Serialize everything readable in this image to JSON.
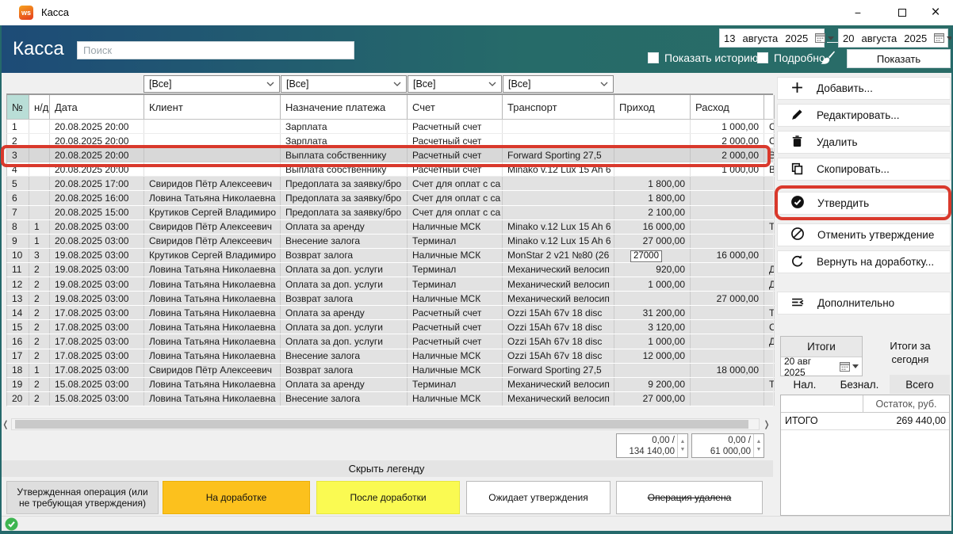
{
  "window": {
    "title": "Касса",
    "icon_text": "ws"
  },
  "header": {
    "title": "Касса",
    "search_placeholder": "Поиск",
    "date_from": {
      "day": "13",
      "month": "августа",
      "year": "2025"
    },
    "date_to": {
      "day": "20",
      "month": "августа",
      "year": "2025"
    },
    "range_dash": "—",
    "show_history_label": "Показать историю",
    "detail_label": "Подробно",
    "show_button": "Показать"
  },
  "filters": {
    "items": [
      "[Все]",
      "[Все]",
      "[Все]",
      "[Все]"
    ]
  },
  "table": {
    "columns": [
      "№",
      "н/д",
      "Дата",
      "Клиент",
      "Назначение платежа",
      "Счет",
      "Транспорт",
      "Приход",
      "Расход"
    ],
    "rows": [
      {
        "n": "1",
        "nd": "",
        "date": "20.08.2025 20:00",
        "client": "",
        "purpose": "Зарплата",
        "account": "Расчетный счет",
        "transport": "",
        "income": "",
        "expense": "1 000,00",
        "tail": "С",
        "state": "pending"
      },
      {
        "n": "2",
        "nd": "",
        "date": "20.08.2025 20:00",
        "client": "",
        "purpose": "Зарплата",
        "account": "Расчетный счет",
        "transport": "",
        "income": "",
        "expense": "2 000,00",
        "tail": "С",
        "state": "pending"
      },
      {
        "n": "3",
        "nd": "",
        "date": "20.08.2025 20:00",
        "client": "",
        "purpose": "Выплата собственнику",
        "account": "Расчетный счет",
        "transport": "Forward Sporting 27,5",
        "income": "",
        "expense": "2 000,00",
        "tail": "В",
        "state": "selected"
      },
      {
        "n": "4",
        "nd": "",
        "date": "20.08.2025 20:00",
        "client": "",
        "purpose": "Выплата собственнику",
        "account": "Расчетный счет",
        "transport": "Minako v.12 Lux 15 Ah 6",
        "income": "",
        "expense": "1 000,00",
        "tail": "В",
        "state": "pending"
      },
      {
        "n": "5",
        "nd": "",
        "date": "20.08.2025 17:00",
        "client": "Свиридов Пётр Алексеевич",
        "purpose": "Предоплата за заявку/бро",
        "account": "Счет для оплат с са",
        "transport": "",
        "income": "1 800,00",
        "expense": "",
        "tail": "",
        "state": "approved"
      },
      {
        "n": "6",
        "nd": "",
        "date": "20.08.2025 16:00",
        "client": "Ловина Татьяна Николаевна",
        "purpose": "Предоплата за заявку/бро",
        "account": "Счет для оплат с са",
        "transport": "",
        "income": "1 800,00",
        "expense": "",
        "tail": "",
        "state": "approved"
      },
      {
        "n": "7",
        "nd": "",
        "date": "20.08.2025 15:00",
        "client": "Крутиков Сергей Владимиро",
        "purpose": "Предоплата за заявку/бро",
        "account": "Счет для оплат с са",
        "transport": "",
        "income": "2 100,00",
        "expense": "",
        "tail": "",
        "state": "approved"
      },
      {
        "n": "8",
        "nd": "1",
        "date": "20.08.2025 03:00",
        "client": "Свиридов Пётр Алексеевич",
        "purpose": "Оплата за аренду",
        "account": "Наличные МСК",
        "transport": "Minako v.12 Lux 15 Ah 6",
        "income": "16 000,00",
        "expense": "",
        "tail": "Т",
        "state": "approved"
      },
      {
        "n": "9",
        "nd": "1",
        "date": "20.08.2025 03:00",
        "client": "Свиридов Пётр Алексеевич",
        "purpose": "Внесение залога",
        "account": "Терминал",
        "transport": "Minako v.12 Lux 15 Ah 6",
        "income": "27 000,00",
        "expense": "",
        "tail": "",
        "state": "approved"
      },
      {
        "n": "10",
        "nd": "3",
        "date": "19.08.2025 03:00",
        "client": "Крутиков Сергей Владимиро",
        "purpose": "Возврат залога",
        "account": "Наличные МСК",
        "transport": "MonStar 2 v21 №80 (26",
        "income": "27000",
        "income_edit": true,
        "expense": "16 000,00",
        "tail": "",
        "state": "approved"
      },
      {
        "n": "11",
        "nd": "2",
        "date": "19.08.2025 03:00",
        "client": "Ловина Татьяна Николаевна",
        "purpose": "Оплата за доп. услуги",
        "account": "Терминал",
        "transport": "Механический велосип",
        "income": "920,00",
        "expense": "",
        "tail": "Д",
        "state": "approved"
      },
      {
        "n": "12",
        "nd": "2",
        "date": "19.08.2025 03:00",
        "client": "Ловина Татьяна Николаевна",
        "purpose": "Оплата за доп. услуги",
        "account": "Терминал",
        "transport": "Механический велосип",
        "income": "1 000,00",
        "expense": "",
        "tail": "Д",
        "state": "approved"
      },
      {
        "n": "13",
        "nd": "2",
        "date": "19.08.2025 03:00",
        "client": "Ловина Татьяна Николаевна",
        "purpose": "Возврат залога",
        "account": "Наличные МСК",
        "transport": "Механический велосип",
        "income": "",
        "expense": "27 000,00",
        "tail": "",
        "state": "approved"
      },
      {
        "n": "14",
        "nd": "2",
        "date": "17.08.2025 03:00",
        "client": "Ловина Татьяна Николаевна",
        "purpose": "Оплата за аренду",
        "account": "Расчетный счет",
        "transport": "Ozzi 15Ah 67v 18 disc",
        "income": "31 200,00",
        "expense": "",
        "tail": "Т",
        "state": "approved"
      },
      {
        "n": "15",
        "nd": "2",
        "date": "17.08.2025 03:00",
        "client": "Ловина Татьяна Николаевна",
        "purpose": "Оплата за доп. услуги",
        "account": "Расчетный счет",
        "transport": "Ozzi 15Ah 67v 18 disc",
        "income": "3 120,00",
        "expense": "",
        "tail": "С",
        "state": "approved"
      },
      {
        "n": "16",
        "nd": "2",
        "date": "17.08.2025 03:00",
        "client": "Ловина Татьяна Николаевна",
        "purpose": "Оплата за доп. услуги",
        "account": "Расчетный счет",
        "transport": "Ozzi 15Ah 67v 18 disc",
        "income": "1 000,00",
        "expense": "",
        "tail": "Д",
        "state": "approved"
      },
      {
        "n": "17",
        "nd": "2",
        "date": "17.08.2025 03:00",
        "client": "Ловина Татьяна Николаевна",
        "purpose": "Внесение залога",
        "account": "Наличные МСК",
        "transport": "Ozzi 15Ah 67v 18 disc",
        "income": "12 000,00",
        "expense": "",
        "tail": "",
        "state": "approved"
      },
      {
        "n": "18",
        "nd": "1",
        "date": "17.08.2025 03:00",
        "client": "Свиридов Пётр Алексеевич",
        "purpose": "Возврат залога",
        "account": "Наличные МСК",
        "transport": "Forward Sporting 27,5",
        "income": "",
        "expense": "18 000,00",
        "tail": "",
        "state": "approved"
      },
      {
        "n": "19",
        "nd": "2",
        "date": "15.08.2025 03:00",
        "client": "Ловина Татьяна Николаевна",
        "purpose": "Оплата за аренду",
        "account": "Терминал",
        "transport": "Механический велосип",
        "income": "9 200,00",
        "expense": "",
        "tail": "Т",
        "state": "approved"
      },
      {
        "n": "20",
        "nd": "2",
        "date": "15.08.2025 03:00",
        "client": "Ловина Татьяна Николаевна",
        "purpose": "Внесение залога",
        "account": "Наличные МСК",
        "transport": "Механический велосип",
        "income": "27 000,00",
        "expense": "",
        "tail": "",
        "state": "approved"
      }
    ]
  },
  "footer": {
    "income_summary": {
      "top": "0,00 /",
      "bottom": "134 140,00"
    },
    "expense_summary": {
      "top": "0,00 /",
      "bottom": "61 000,00"
    },
    "legend_toggle": "Скрыть легенду",
    "legend": [
      {
        "label": "Утвержденная операция (или не требующая утверждения)",
        "color": "#dedede",
        "border": "#c6c6c6",
        "strike": false
      },
      {
        "label": "На доработке",
        "color": "#fcc11d",
        "border": "#eab008",
        "strike": false
      },
      {
        "label": "После доработки",
        "color": "#fafa52",
        "border": "#e7e73e",
        "strike": false
      },
      {
        "label": "Ожидает утверждения",
        "color": "#ffffff",
        "border": "#b9b9b9",
        "strike": false
      },
      {
        "label": "Операция удалена",
        "color": "#ffffff",
        "border": "#b9b9b9",
        "strike": true
      }
    ]
  },
  "sidebar": {
    "buttons": [
      {
        "icon": "plus-icon",
        "label": "Добавить..."
      },
      {
        "icon": "pencil-icon",
        "label": "Редактировать..."
      },
      {
        "icon": "trash-icon",
        "label": "Удалить"
      },
      {
        "icon": "copy-icon",
        "label": "Скопировать..."
      },
      {
        "icon": "check-circle-icon",
        "label": "Утвердить",
        "highlighted": true
      },
      {
        "icon": "cancel-circle-icon",
        "label": "Отменить утверждение"
      },
      {
        "icon": "redo-icon",
        "label": "Вернуть на доработку..."
      },
      {
        "icon": "menu-collapse-icon",
        "label": "Дополнительно"
      }
    ],
    "totals": {
      "title": "Итоги",
      "date": "20 авг 2025",
      "subtitle_line1": "Итоги за",
      "subtitle_line2": "сегодня",
      "tabs": [
        "Нал.",
        "Безнал.",
        "Всего"
      ],
      "active_tab": "Всего",
      "col_header": "Остаток, руб.",
      "total_label": "ИТОГО",
      "total_value": "269 440,00"
    }
  },
  "colors": {
    "header_gradient_left": "#1d4b77",
    "header_gradient_right": "#2a6c67",
    "annotation_red": "#d9392c",
    "num_header_mint": "#b9ded7",
    "approved_row_gray": "#e2e2e2",
    "legend_orange": "#fcc11d",
    "legend_yellow": "#fafa52",
    "status_green": "#3eb550"
  }
}
